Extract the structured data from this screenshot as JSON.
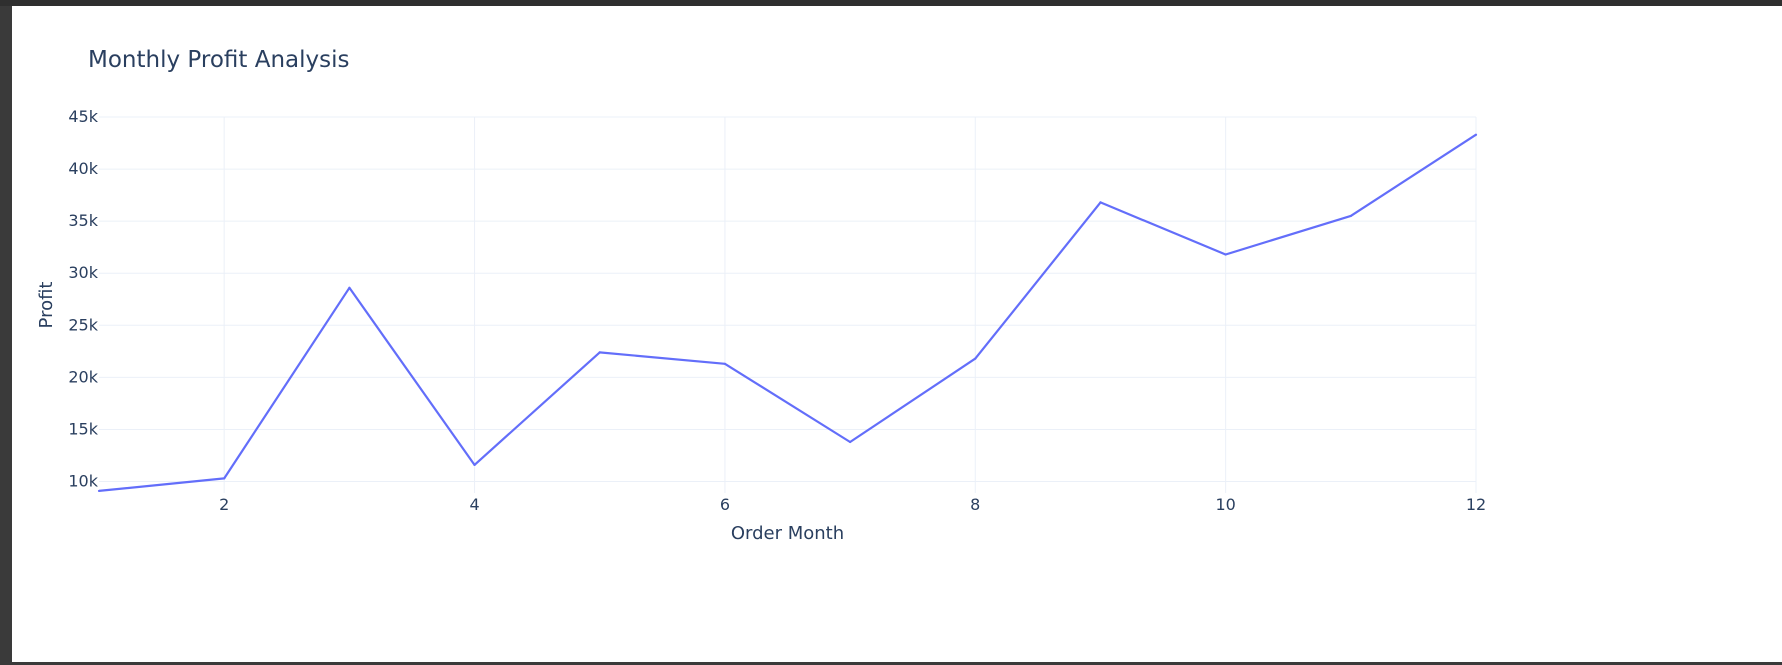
{
  "chart_data": {
    "type": "line",
    "title": "Monthly Profit Analysis",
    "xlabel": "Order Month",
    "ylabel": "Profit",
    "x": [
      1,
      2,
      3,
      4,
      5,
      6,
      7,
      8,
      9,
      10,
      11,
      12
    ],
    "series": [
      {
        "values": [
          9100,
          10300,
          28600,
          11600,
          22400,
          21300,
          13800,
          21800,
          36800,
          31800,
          35500,
          43300
        ],
        "color": "#636efa"
      }
    ],
    "xlim": [
      1,
      12
    ],
    "ylim": [
      8900,
      45000
    ],
    "x_ticks": [
      2,
      4,
      6,
      8,
      10,
      12
    ],
    "x_tick_labels": [
      "2",
      "4",
      "6",
      "8",
      "10",
      "12"
    ],
    "y_ticks": [
      10000,
      15000,
      20000,
      25000,
      30000,
      35000,
      40000,
      45000
    ],
    "y_tick_labels": [
      "10k",
      "15k",
      "20k",
      "25k",
      "30k",
      "35k",
      "40k",
      "45k"
    ],
    "grid": true,
    "legend": "none",
    "colors": {
      "line": "#636efa",
      "grid": "#ebf0f8",
      "text": "#2a3f5f",
      "background": "#ffffff"
    }
  }
}
